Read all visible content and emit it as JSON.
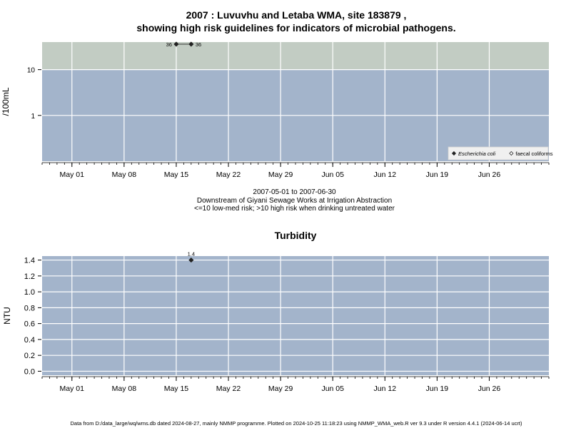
{
  "top_title_1": "2007 : Luvuvhu and Letaba WMA, site 183879 ,",
  "top_title_2": "showing high risk guidelines for indicators of microbial pathogens.",
  "date_range": "2007-05-01 to 2007-06-30",
  "location": "Downstream of Giyani Sewage Works at Irrigation Abstraction",
  "risk_note": "<=10 low-med risk; >10 high risk when drinking untreated water",
  "footer": "Data from D:/data_large/wq/wms.db dated 2024-08-27, mainly NMMP programme. Plotted on 2024-10-25 11:18:23 using NMMP_WMA_web.R ver 9.3 under R version 4.4.1 (2024-06-14 ucrt)",
  "colors": {
    "panel": "#a3b4cb",
    "high_risk_band": "#c2ccc3",
    "grid": "#ffffff",
    "point": "#222222"
  },
  "chart_data": [
    {
      "type": "scatter",
      "title": "",
      "ylabel": "/100mL",
      "yscale": "log",
      "ylim": [
        0.1,
        40
      ],
      "yticks": [
        1,
        10
      ],
      "ytick_labels": [
        "1",
        "10"
      ],
      "xlim": [
        "2007-04-27",
        "2007-07-04"
      ],
      "xticks": [
        "2007-05-01",
        "2007-05-08",
        "2007-05-15",
        "2007-05-22",
        "2007-05-29",
        "2007-06-05",
        "2007-06-12",
        "2007-06-19",
        "2007-06-26"
      ],
      "xtick_labels": [
        "May 01",
        "May 08",
        "May 15",
        "May 22",
        "May 29",
        "Jun 05",
        "Jun 12",
        "Jun 19",
        "Jun 26"
      ],
      "high_risk_threshold": 10,
      "grid": true,
      "legend_position": "bottom-right",
      "series": [
        {
          "name": "Escherichia coli",
          "marker": "filled-diamond",
          "points": [
            {
              "x": "2007-05-15",
              "y": 36,
              "label": "36"
            },
            {
              "x": "2007-05-17",
              "y": 36,
              "label": "36"
            }
          ]
        },
        {
          "name": "faecal coliforms",
          "marker": "open-diamond",
          "points": []
        }
      ]
    },
    {
      "type": "scatter",
      "title": "Turbidity",
      "ylabel": "NTU",
      "yscale": "linear",
      "ylim": [
        -0.05,
        1.45
      ],
      "yticks": [
        0.0,
        0.2,
        0.4,
        0.6,
        0.8,
        1.0,
        1.2,
        1.4
      ],
      "ytick_labels": [
        "0.0",
        "0.2",
        "0.4",
        "0.6",
        "0.8",
        "1.0",
        "1.2",
        "1.4"
      ],
      "xlim": [
        "2007-04-27",
        "2007-07-04"
      ],
      "xticks": [
        "2007-05-01",
        "2007-05-08",
        "2007-05-15",
        "2007-05-22",
        "2007-05-29",
        "2007-06-05",
        "2007-06-12",
        "2007-06-19",
        "2007-06-26"
      ],
      "xtick_labels": [
        "May 01",
        "May 08",
        "May 15",
        "May 22",
        "May 29",
        "Jun 05",
        "Jun 12",
        "Jun 19",
        "Jun 26"
      ],
      "grid": true,
      "series": [
        {
          "name": "",
          "marker": "filled-diamond",
          "points": [
            {
              "x": "2007-05-17",
              "y": 1.4,
              "label": "1.4"
            }
          ]
        }
      ]
    }
  ]
}
